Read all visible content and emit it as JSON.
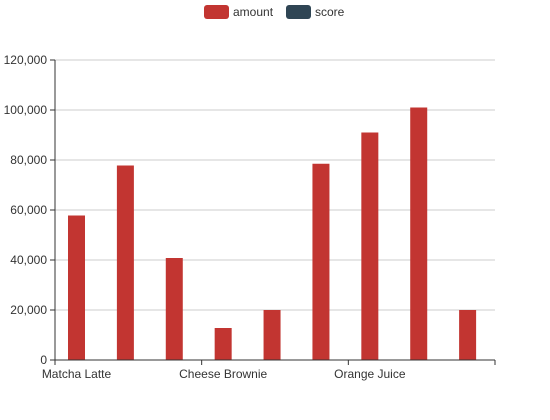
{
  "chart_data": {
    "type": "bar",
    "title": "",
    "xlabel": "",
    "ylabel": "",
    "categories": [
      "Matcha Latte",
      "",
      "",
      "Cheese Brownie",
      "",
      "",
      "Orange Juice",
      "",
      ""
    ],
    "x_tick_labels": [
      "Matcha Latte",
      "Cheese Brownie",
      "Orange Juice"
    ],
    "y_tick_labels": [
      "0",
      "20,000",
      "40,000",
      "60,000",
      "80,000",
      "100,000",
      "120,000"
    ],
    "ylim": [
      0,
      120000
    ],
    "grid": true,
    "legend_position": "top-center",
    "series": [
      {
        "name": "amount",
        "color": "#c23531",
        "values": [
          57800,
          77800,
          40800,
          12800,
          20000,
          78500,
          91000,
          101000,
          20000
        ]
      },
      {
        "name": "score",
        "color": "#2f4554",
        "values": [
          null,
          null,
          null,
          null,
          null,
          null,
          null,
          null,
          null
        ]
      }
    ]
  }
}
